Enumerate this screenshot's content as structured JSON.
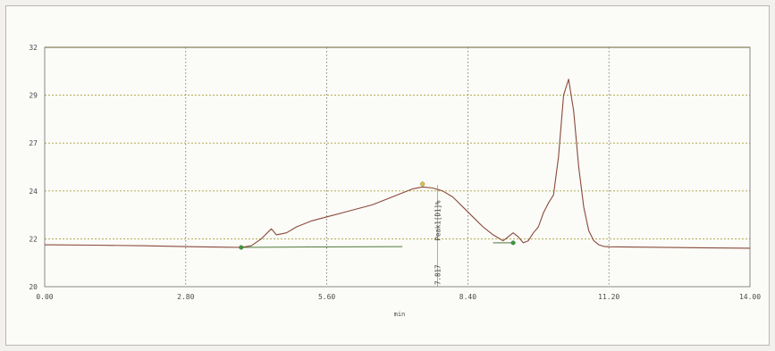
{
  "chart_data": {
    "type": "line",
    "xlabel": "min",
    "ylabel": "",
    "xlim": [
      0,
      14
    ],
    "ylim": [
      20,
      32
    ],
    "x_ticks": [
      "0.00",
      "2.80",
      "5.60",
      "8.40",
      "11.20",
      "14.00"
    ],
    "y_ticks": [
      "20",
      "22",
      "24",
      "27",
      "29",
      "32"
    ],
    "grid": true,
    "series": [
      {
        "x": [
          0.0,
          1.0,
          2.0,
          3.0,
          3.9,
          4.1,
          4.3,
          4.5,
          4.6,
          4.8,
          5.0,
          5.3,
          5.6,
          5.9,
          6.2,
          6.5,
          6.8,
          7.1,
          7.3,
          7.5,
          7.7,
          7.9,
          8.1,
          8.3,
          8.5,
          8.7,
          8.9,
          9.1,
          9.3,
          9.4,
          9.5,
          9.6,
          9.7,
          9.8,
          9.9,
          10.0,
          10.1,
          10.2,
          10.3,
          10.4,
          10.5,
          10.6,
          10.7,
          10.8,
          10.9,
          11.0,
          11.1,
          11.2,
          12.0,
          13.0,
          14.0
        ],
        "y": [
          22.1,
          22.08,
          22.05,
          22.0,
          21.97,
          22.05,
          22.4,
          22.9,
          22.6,
          22.7,
          23.0,
          23.3,
          23.5,
          23.7,
          23.9,
          24.1,
          24.4,
          24.7,
          24.9,
          25.0,
          24.95,
          24.8,
          24.5,
          24.0,
          23.5,
          23.0,
          22.6,
          22.3,
          22.7,
          22.5,
          22.2,
          22.3,
          22.7,
          23.0,
          23.7,
          24.2,
          24.6,
          26.5,
          29.6,
          30.4,
          28.8,
          26.0,
          24.0,
          22.8,
          22.3,
          22.1,
          22.02,
          22.0,
          21.98,
          21.95,
          21.93
        ]
      }
    ],
    "baseline": {
      "x": [
        3.9,
        9.3
      ],
      "y": [
        21.97,
        22.2
      ]
    },
    "markers": [
      {
        "x": 3.9,
        "y": 21.97,
        "color": "#3a9a3a"
      },
      {
        "x": 7.5,
        "y": 25.15,
        "color": "#e2c233"
      },
      {
        "x": 9.3,
        "y": 22.2,
        "color": "#3a9a3a"
      }
    ],
    "annotations": {
      "peak_label": "Peak1[D1]%",
      "retention_time": "7.817",
      "retention_x": 7.8
    },
    "colors": {
      "trace": "#8a4a3a",
      "grid": "#a8a43a",
      "axis": "#6d6d6d"
    }
  }
}
